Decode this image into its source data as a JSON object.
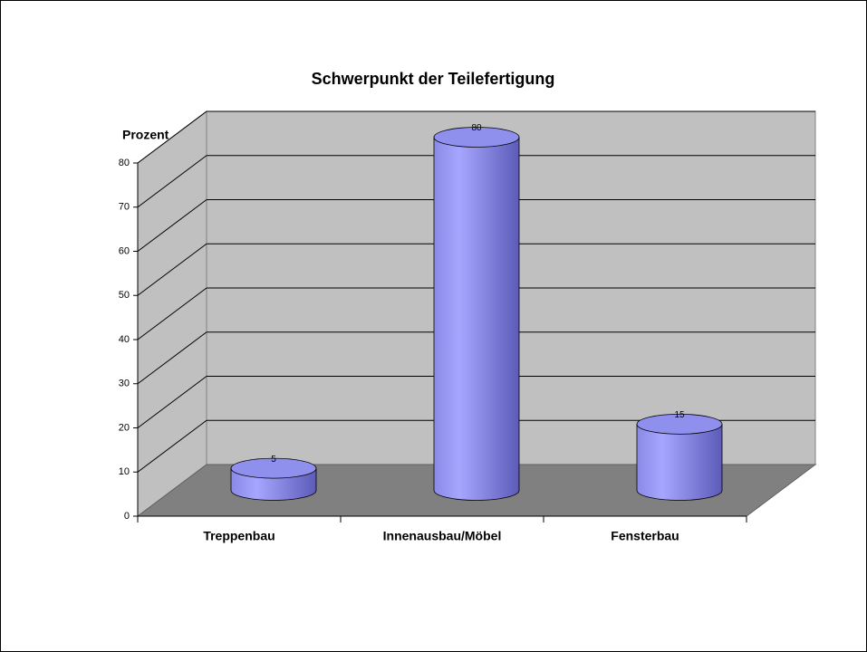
{
  "chart_data": {
    "type": "bar3d",
    "title": "Schwerpunkt der Teilefertigung",
    "y_label": "Prozent",
    "categories": [
      "Treppenbau",
      "Innenausbau/Möbel",
      "Fensterbau"
    ],
    "values": [
      5,
      80,
      15
    ],
    "color": "#9999ff",
    "ylim": [
      0,
      80
    ],
    "yticks": [
      0,
      10,
      20,
      30,
      40,
      50,
      60,
      70,
      80
    ],
    "grid": true
  }
}
